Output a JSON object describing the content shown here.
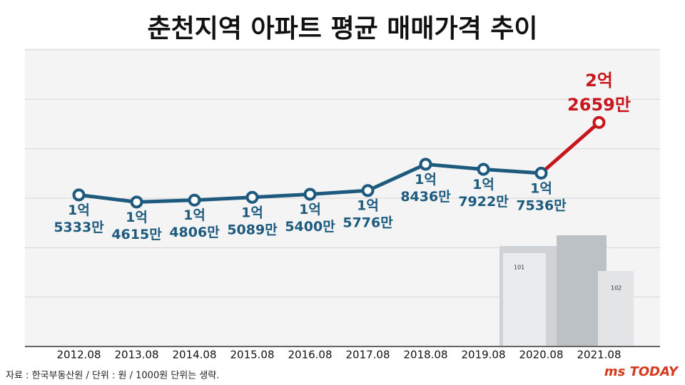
{
  "chart_data": {
    "type": "line",
    "title": "춘천지역 아파트 평균 매매가격 추이",
    "categories": [
      "2012.08",
      "2013.08",
      "2014.08",
      "2015.08",
      "2016.08",
      "2017.08",
      "2018.08",
      "2019.08",
      "2020.08",
      "2021.08"
    ],
    "values": [
      15333,
      14615,
      14806,
      15089,
      15400,
      15776,
      18436,
      17922,
      17536,
      22659
    ],
    "value_labels": [
      [
        "1억",
        "5333만"
      ],
      [
        "1억",
        "4615만"
      ],
      [
        "1억",
        "4806만"
      ],
      [
        "1억",
        "5089만"
      ],
      [
        "1억",
        "5400만"
      ],
      [
        "1억",
        "5776만"
      ],
      [
        "1억",
        "8436만"
      ],
      [
        "1억",
        "7922만"
      ],
      [
        "1억",
        "7536만"
      ],
      [
        "2억",
        "2659만"
      ]
    ],
    "color": "#1d5a7e",
    "highlight_color": "#c8161d",
    "ylim": [
      0,
      30000
    ],
    "yticks": [
      0,
      5000,
      10000,
      15000,
      20000,
      25000,
      30000
    ],
    "grid": true,
    "source": "자료 : 한국부동산원 / 단위 : 원 / 1000원 단위는 생략.",
    "logo": "ms TODAY",
    "illustration_labels": [
      "101",
      "102"
    ]
  }
}
